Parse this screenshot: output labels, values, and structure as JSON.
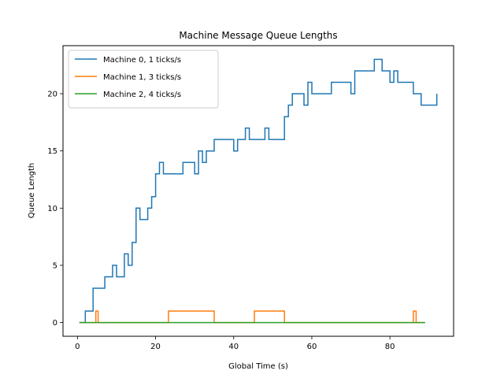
{
  "chart_data": {
    "type": "line",
    "drawstyle": "steps-post",
    "title": "Machine Message Queue Lengths",
    "xlabel": "Global Time (s)",
    "ylabel": "Queue Length",
    "xlim": [
      -3.7,
      96.3
    ],
    "ylim": [
      -1.2,
      24.2
    ],
    "xticks": [
      0,
      20,
      40,
      60,
      80
    ],
    "yticks": [
      0,
      5,
      10,
      15,
      20
    ],
    "grid": false,
    "legend_position": "top-left",
    "series": [
      {
        "name": "Machine 0, 1 ticks/s",
        "color": "#1f77b4",
        "x": [
          0.5,
          2,
          4,
          7,
          9,
          10,
          12,
          13,
          14,
          15,
          16,
          18,
          19,
          20,
          21,
          22,
          27,
          30,
          31,
          32,
          33,
          35,
          40,
          41,
          43,
          44,
          45,
          48,
          49,
          53,
          54,
          55,
          58,
          59,
          60,
          65,
          70,
          71,
          76,
          78,
          80,
          81,
          82,
          86,
          88,
          92
        ],
        "y": [
          0,
          1,
          3,
          4,
          5,
          4,
          6,
          5,
          7,
          10,
          9,
          10,
          11,
          13,
          14,
          13,
          14,
          13,
          15,
          14,
          15,
          16,
          15,
          16,
          17,
          16,
          16,
          17,
          16,
          18,
          19,
          20,
          19,
          21,
          20,
          21,
          20,
          22,
          23,
          22,
          21,
          22,
          21,
          20,
          19,
          20
        ]
      },
      {
        "name": "Machine 1, 3 ticks/s",
        "color": "#ff7f0e",
        "x": [
          0.5,
          4.7,
          5.3,
          23.3,
          35,
          45.3,
          53,
          86,
          86.7,
          89
        ],
        "y": [
          0,
          1,
          0,
          1,
          0,
          1,
          0,
          1,
          0,
          0
        ]
      },
      {
        "name": "Machine 2, 4 ticks/s",
        "color": "#2ca02c",
        "x": [
          0.5,
          89
        ],
        "y": [
          0,
          0
        ]
      }
    ]
  }
}
